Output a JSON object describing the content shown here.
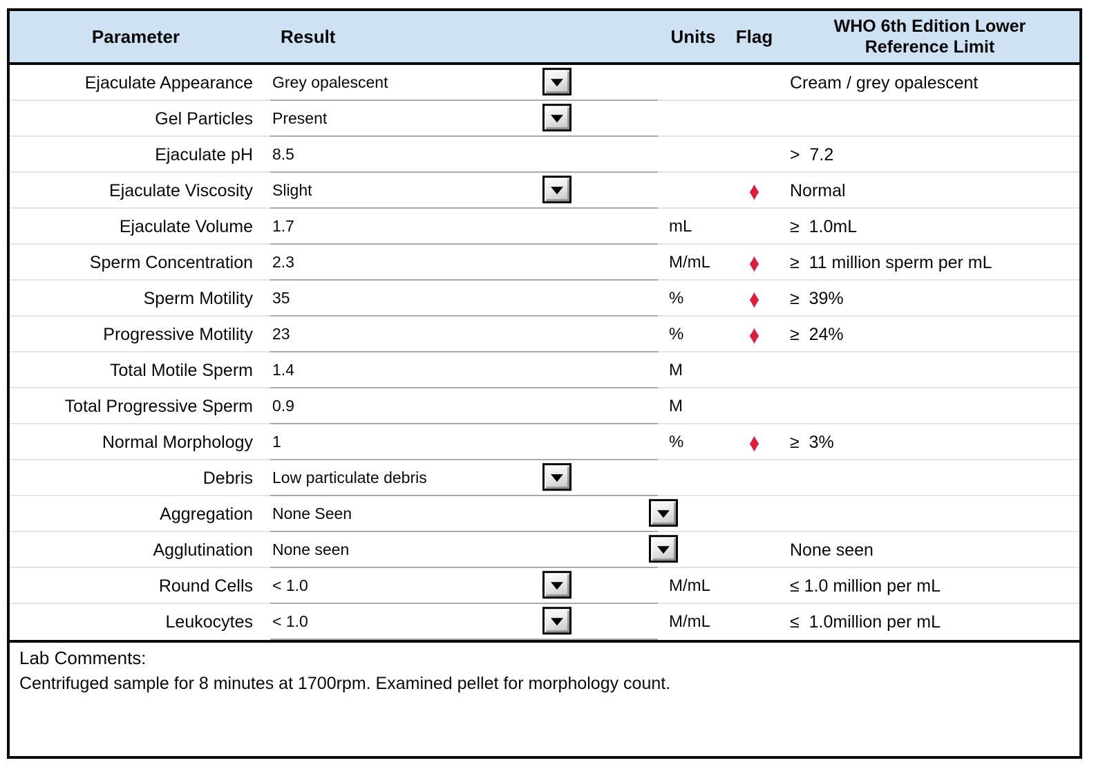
{
  "table": {
    "header": {
      "parameter": "Parameter",
      "result": "Result",
      "units": "Units",
      "flag": "Flag",
      "reference": "WHO 6th Edition Lower Reference Limit"
    },
    "rows": [
      {
        "parameter": "Ejaculate Appearance",
        "result": "Grey opalescent",
        "has_dropdown": true,
        "dropdown_pos": "mid",
        "units": "",
        "flag": false,
        "reference": "Cream / grey opalescent"
      },
      {
        "parameter": "Gel Particles",
        "result": "Present",
        "has_dropdown": true,
        "dropdown_pos": "mid",
        "units": "",
        "flag": false,
        "reference": ""
      },
      {
        "parameter": "Ejaculate pH",
        "result": "8.5",
        "has_dropdown": false,
        "dropdown_pos": "",
        "units": "",
        "flag": false,
        "reference": ">  7.2"
      },
      {
        "parameter": "Ejaculate Viscosity",
        "result": "Slight",
        "has_dropdown": true,
        "dropdown_pos": "mid",
        "units": "",
        "flag": true,
        "reference": "Normal"
      },
      {
        "parameter": "Ejaculate Volume",
        "result": "1.7",
        "has_dropdown": false,
        "dropdown_pos": "",
        "units": "mL",
        "flag": false,
        "reference": "≥  1.0mL"
      },
      {
        "parameter": "Sperm Concentration",
        "result": "2.3",
        "has_dropdown": false,
        "dropdown_pos": "",
        "units": "M/mL",
        "flag": true,
        "reference": "≥  11 million sperm per mL"
      },
      {
        "parameter": "Sperm Motility",
        "result": "35",
        "has_dropdown": false,
        "dropdown_pos": "",
        "units": "%",
        "flag": true,
        "reference": "≥  39%"
      },
      {
        "parameter": "Progressive Motility",
        "result": "23",
        "has_dropdown": false,
        "dropdown_pos": "",
        "units": "%",
        "flag": true,
        "reference": "≥  24%"
      },
      {
        "parameter": "Total Motile Sperm",
        "result": "1.4",
        "has_dropdown": false,
        "dropdown_pos": "",
        "units": "M",
        "flag": false,
        "reference": ""
      },
      {
        "parameter": "Total Progressive Sperm",
        "result": "0.9",
        "has_dropdown": false,
        "dropdown_pos": "",
        "units": "M",
        "flag": false,
        "reference": ""
      },
      {
        "parameter": "Normal Morphology",
        "result": "1",
        "has_dropdown": false,
        "dropdown_pos": "",
        "units": "%",
        "flag": true,
        "reference": "≥  3%"
      },
      {
        "parameter": "Debris",
        "result": "Low particulate debris",
        "has_dropdown": true,
        "dropdown_pos": "mid",
        "units": "",
        "flag": false,
        "reference": ""
      },
      {
        "parameter": "Aggregation",
        "result": "None Seen",
        "has_dropdown": true,
        "dropdown_pos": "right",
        "units": "",
        "flag": false,
        "reference": ""
      },
      {
        "parameter": "Agglutination",
        "result": "None seen",
        "has_dropdown": true,
        "dropdown_pos": "right",
        "units": "",
        "flag": false,
        "reference": "None seen"
      },
      {
        "parameter": "Round Cells",
        "result": "< 1.0",
        "has_dropdown": true,
        "dropdown_pos": "mid",
        "units": "M/mL",
        "flag": false,
        "reference": "≤ 1.0 million per mL"
      },
      {
        "parameter": "Leukocytes",
        "result": "< 1.0",
        "has_dropdown": true,
        "dropdown_pos": "mid",
        "units": "M/mL",
        "flag": false,
        "reference": "≤  1.0million per mL"
      }
    ],
    "comments": {
      "title": "Lab Comments:",
      "text": "Centrifuged sample for 8 minutes at 1700rpm. Examined pellet for morphology count."
    }
  },
  "icons": {
    "dropdown_caret": "caret-down-icon",
    "flag_marker": "diamond-icon"
  },
  "colors": {
    "header_bg": "#cfe2f3",
    "flag_red": "#dc1e3c",
    "border_black": "#0a0a0a"
  }
}
